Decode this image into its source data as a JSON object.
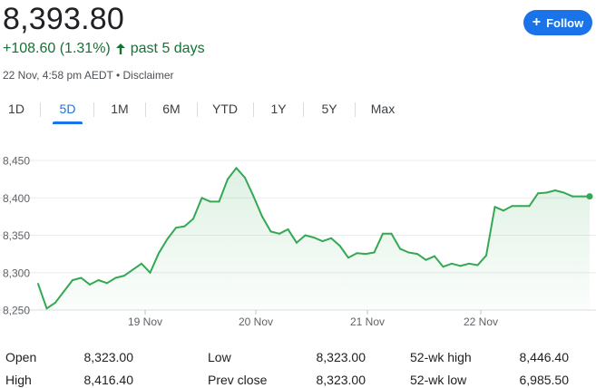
{
  "header": {
    "price": "8,393.80",
    "change": "+108.60 (1.31%)",
    "period": "past 5 days",
    "meta": "22 Nov, 4:58 pm AEDT • Disclaimer",
    "follow_label": "Follow"
  },
  "tabs": [
    {
      "label": "1D",
      "active": false
    },
    {
      "label": "5D",
      "active": true
    },
    {
      "label": "1M",
      "active": false
    },
    {
      "label": "6M",
      "active": false
    },
    {
      "label": "YTD",
      "active": false
    },
    {
      "label": "1Y",
      "active": false
    },
    {
      "label": "5Y",
      "active": false
    },
    {
      "label": "Max",
      "active": false
    }
  ],
  "colors": {
    "accent": "#1a73e8",
    "positive": "#137333",
    "line": "#34a853"
  },
  "chart_data": {
    "type": "line",
    "y_ticks": [
      "8,450",
      "8,400",
      "8,350",
      "8,300",
      "8,250"
    ],
    "ylim": [
      8250,
      8450
    ],
    "x_ticks": [
      "19 Nov",
      "20 Nov",
      "21 Nov",
      "22 Nov"
    ],
    "grid": true,
    "series": [
      {
        "values": [
          8285,
          8252,
          8260,
          8275,
          8290,
          8293,
          8284,
          8290,
          8286,
          8293,
          8296,
          8304,
          8312,
          8300,
          8326,
          8345,
          8360,
          8362,
          8372,
          8400,
          8395,
          8395,
          8425,
          8440,
          8427,
          8402,
          8375,
          8355,
          8352,
          8358,
          8340,
          8350,
          8347,
          8342,
          8346,
          8336,
          8320,
          8326,
          8325,
          8327,
          8352,
          8352,
          8332,
          8327,
          8325,
          8317,
          8322,
          8308,
          8312,
          8309,
          8312,
          8310,
          8323,
          8388,
          8383,
          8389,
          8389,
          8389,
          8406,
          8407,
          8410,
          8407,
          8402,
          8402,
          8402
        ]
      }
    ]
  },
  "stats": [
    {
      "label": "Open",
      "value": "8,323.00"
    },
    {
      "label": "High",
      "value": "8,416.40"
    },
    {
      "label": "Low",
      "value": "8,323.00"
    },
    {
      "label": "Prev close",
      "value": "8,323.00"
    },
    {
      "label": "52-wk high",
      "value": "8,446.40"
    },
    {
      "label": "52-wk low",
      "value": "6,985.50"
    }
  ]
}
